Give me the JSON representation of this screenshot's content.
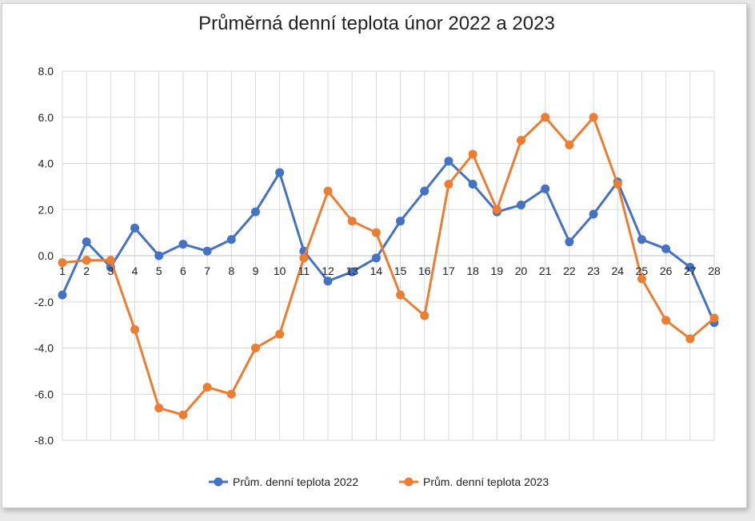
{
  "chart_data": {
    "type": "line",
    "title": "Průměrná denní teplota únor 2022 a 2023",
    "xlabel": "",
    "ylabel": "",
    "categories": [
      "1",
      "2",
      "3",
      "4",
      "5",
      "6",
      "7",
      "8",
      "9",
      "10",
      "11",
      "12",
      "13",
      "14",
      "15",
      "16",
      "17",
      "18",
      "19",
      "20",
      "21",
      "22",
      "23",
      "24",
      "25",
      "26",
      "27",
      "28"
    ],
    "ylim": [
      -8,
      8
    ],
    "yticks": [
      "8.0",
      "6.0",
      "4.0",
      "2.0",
      "0.0",
      "-2.0",
      "-4.0",
      "-6.0",
      "-8.0"
    ],
    "grid": true,
    "legend_position": "bottom",
    "series": [
      {
        "name": "Prům. denní teplota 2022",
        "color": "#4472c4",
        "values": [
          -1.7,
          0.6,
          -0.5,
          1.2,
          0.0,
          0.5,
          0.2,
          0.7,
          1.9,
          3.6,
          0.2,
          -1.1,
          -0.7,
          -0.1,
          1.5,
          2.8,
          4.1,
          3.1,
          1.9,
          2.2,
          2.9,
          0.6,
          1.8,
          3.2,
          0.7,
          0.3,
          -0.5,
          -2.9
        ]
      },
      {
        "name": "Prům. denní teplota 2023",
        "color": "#ed7d31",
        "values": [
          -0.3,
          -0.2,
          -0.2,
          -3.2,
          -6.6,
          -6.9,
          -5.7,
          -6.0,
          -4.0,
          -3.4,
          -0.1,
          2.8,
          1.5,
          1.0,
          -1.7,
          -2.6,
          3.1,
          4.4,
          2.0,
          5.0,
          6.0,
          4.8,
          6.0,
          3.1,
          -1.0,
          -2.8,
          -3.6,
          -2.7
        ]
      }
    ]
  }
}
